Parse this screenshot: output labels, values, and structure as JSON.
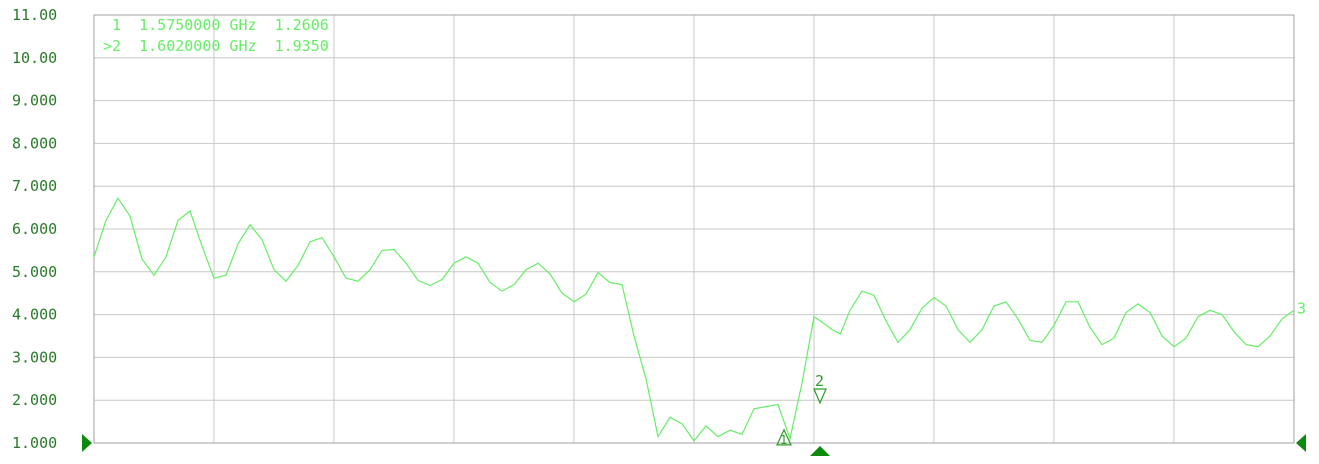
{
  "chart_data": {
    "type": "line",
    "title": "",
    "xlabel": "",
    "ylabel": "",
    "ylim": [
      1.0,
      11.0
    ],
    "xlim": [
      0,
      100
    ],
    "x_divisions": 10,
    "grid": true,
    "y_tick_labels": [
      "11.00",
      "10.00",
      "9.000",
      "8.000",
      "7.000",
      "6.000",
      "5.000",
      "4.000",
      "3.000",
      "2.000",
      "1.000"
    ],
    "y_tick_values": [
      11,
      10,
      9,
      8,
      7,
      6,
      5,
      4,
      3,
      2,
      1
    ],
    "series": [
      {
        "color": "#66ee66",
        "x": [
          0,
          1,
          2,
          3,
          4,
          5,
          6,
          7,
          8,
          9,
          10,
          11,
          12,
          13,
          14,
          15,
          16,
          17,
          18,
          19,
          20,
          21,
          22,
          23,
          24,
          25,
          26,
          27,
          28,
          29,
          30,
          31,
          32,
          33,
          34,
          35,
          36,
          37,
          38,
          39,
          40,
          41,
          42,
          43,
          44,
          45,
          46,
          47,
          48,
          49,
          50,
          51,
          52,
          53,
          54,
          55,
          56,
          57,
          58,
          59,
          60,
          60.8,
          61.5,
          62.2,
          63,
          64,
          65,
          66,
          67,
          68,
          69,
          70,
          71,
          72,
          73,
          74,
          75,
          76,
          77,
          78,
          79,
          80,
          81,
          82,
          83,
          84,
          85,
          86,
          87,
          88,
          89,
          90,
          91,
          92,
          93,
          94,
          95,
          96,
          97,
          98,
          99,
          100
        ],
        "values": [
          5.35,
          6.2,
          6.72,
          6.3,
          5.3,
          4.92,
          5.35,
          6.2,
          6.42,
          5.6,
          4.85,
          4.92,
          5.65,
          6.1,
          5.75,
          5.05,
          4.78,
          5.15,
          5.7,
          5.8,
          5.35,
          4.85,
          4.78,
          5.05,
          5.5,
          5.52,
          5.2,
          4.8,
          4.68,
          4.82,
          5.2,
          5.35,
          5.2,
          4.75,
          4.55,
          4.7,
          5.05,
          5.2,
          4.95,
          4.5,
          4.3,
          4.48,
          4.98,
          4.75,
          4.7,
          3.5,
          2.5,
          1.15,
          1.6,
          1.45,
          1.05,
          1.4,
          1.15,
          1.3,
          1.2,
          1.8,
          1.85,
          1.9,
          1.1,
          2.4,
          3.95,
          3.8,
          3.65,
          3.55,
          4.1,
          4.55,
          4.45,
          3.85,
          3.35,
          3.65,
          4.15,
          4.4,
          4.2,
          3.65,
          3.35,
          3.65,
          4.2,
          4.3,
          3.9,
          3.4,
          3.35,
          3.75,
          4.3,
          4.3,
          3.7,
          3.3,
          3.45,
          4.05,
          4.25,
          4.05,
          3.5,
          3.25,
          3.45,
          3.95,
          4.1,
          4.0,
          3.6,
          3.3,
          3.25,
          3.5,
          3.9,
          4.1
        ]
      }
    ],
    "markers": [
      {
        "id": "1",
        "x": 57.5,
        "value": 1.2606,
        "label_row": "1  1.5750000 GHz  1.2606",
        "pointer": "up",
        "color": "#2e9a2e"
      },
      {
        "id": "2",
        "x": 60.5,
        "value": 1.935,
        "label_row": ">2  1.6020000 GHz  1.9350",
        "pointer": "down",
        "color": "#2e9a2e",
        "active": true
      }
    ],
    "marker_readout": [
      " 1  1.5750000 GHz  1.2606",
      ">2  1.6020000 GHz  1.9350"
    ],
    "trace_end_label": "3",
    "colors": {
      "trace": "#66ee66",
      "grid": "#c8c8c8",
      "frame": "#a0a0a0",
      "tick_label": "#2a7a2a",
      "marker": "#2e9a2e",
      "edge_marker": "#0c8a0c"
    }
  }
}
